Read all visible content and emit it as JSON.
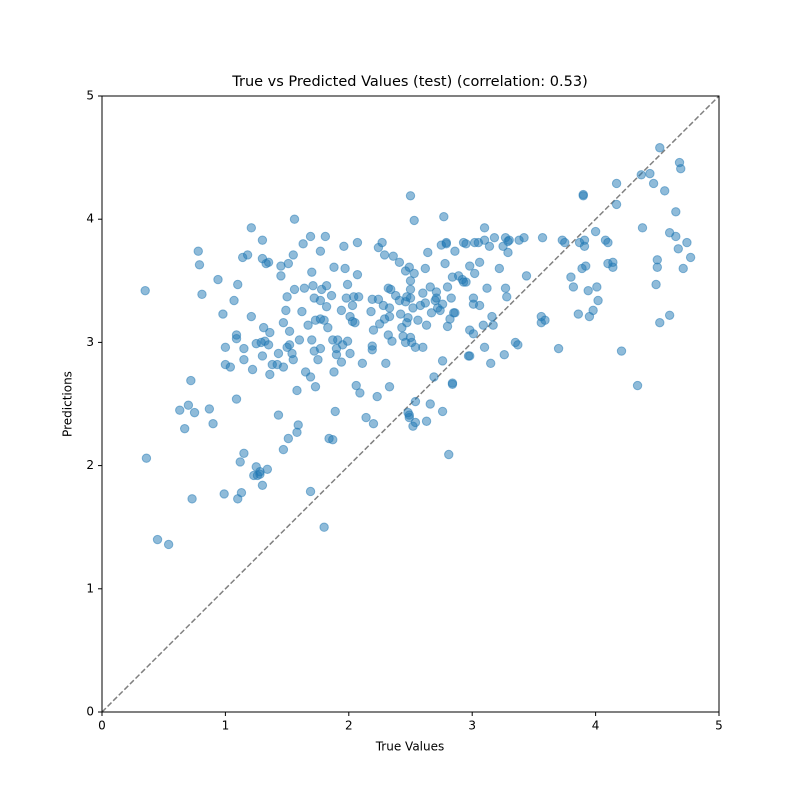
{
  "chart_data": {
    "type": "scatter",
    "title": "True vs Predicted Values (test) (correlation: 0.53)",
    "x_label": "True Values",
    "y_label": "Predictions",
    "color": "#1f77b4",
    "xlim": [
      0,
      5
    ],
    "ylim": [
      0,
      5
    ],
    "xticks": [
      0,
      1,
      2,
      3,
      4,
      5
    ],
    "yticks": [
      0,
      1,
      2,
      3,
      4,
      5
    ],
    "x": [
      0.35,
      0.36,
      0.45,
      0.54,
      0.63,
      0.67,
      0.7,
      0.72,
      0.73,
      0.75,
      0.78,
      0.79,
      0.81,
      0.87,
      0.9,
      0.94,
      0.98,
      0.99,
      1.0,
      1.0,
      1.04,
      1.07,
      1.09,
      1.09,
      1.09,
      1.1,
      1.12,
      1.13,
      1.1,
      1.15,
      1.14,
      1.15,
      1.15,
      1.18,
      1.21,
      1.21,
      1.22,
      1.23,
      1.25,
      1.25,
      1.26,
      1.28,
      1.28,
      1.29,
      1.3,
      1.3,
      1.3,
      1.3,
      1.31,
      1.32,
      1.33,
      1.34,
      1.35,
      1.35,
      1.36,
      1.36,
      1.38,
      1.42,
      1.43,
      1.43,
      1.45,
      1.45,
      1.47,
      1.47,
      1.49,
      1.5,
      1.51,
      1.51,
      1.47,
      1.5,
      1.52,
      1.52,
      1.54,
      1.55,
      1.55,
      1.56,
      1.56,
      1.58,
      1.58,
      1.59,
      1.6,
      1.62,
      1.63,
      1.64,
      1.65,
      1.67,
      1.69,
      1.69,
      1.69,
      1.7,
      1.7,
      1.71,
      1.72,
      1.72,
      1.73,
      1.73,
      1.75,
      1.77,
      1.77,
      1.77,
      1.77,
      1.78,
      1.8,
      1.8,
      1.81,
      1.82,
      1.82,
      1.83,
      1.84,
      1.86,
      1.87,
      1.87,
      1.88,
      1.88,
      1.89,
      1.9,
      1.9,
      1.91,
      1.94,
      1.94,
      1.95,
      1.96,
      1.97,
      1.98,
      1.99,
      1.99,
      2.01,
      2.01,
      2.03,
      2.03,
      2.04,
      2.05,
      2.06,
      2.07,
      2.07,
      2.08,
      2.09,
      2.11,
      2.14,
      2.18,
      2.19,
      2.19,
      2.19,
      2.2,
      2.2,
      2.23,
      2.24,
      2.24,
      2.25,
      2.27,
      2.28,
      2.29,
      2.29,
      2.3,
      2.32,
      2.32,
      2.33,
      2.33,
      2.33,
      2.34,
      2.35,
      2.36,
      2.38,
      2.41,
      2.41,
      2.42,
      2.43,
      2.44,
      2.46,
      2.46,
      2.46,
      2.47,
      2.47,
      2.48,
      2.49,
      2.49,
      2.48,
      2.49,
      2.5,
      2.5,
      2.5,
      2.5,
      2.5,
      2.51,
      2.52,
      2.52,
      2.53,
      2.53,
      2.54,
      2.54,
      2.54,
      2.56,
      2.58,
      2.6,
      2.6,
      2.62,
      2.62,
      2.63,
      2.63,
      2.64,
      2.66,
      2.66,
      2.67,
      2.69,
      2.7,
      2.71,
      2.71,
      2.72,
      2.74,
      2.75,
      2.76,
      2.76,
      2.76,
      2.77,
      2.78,
      2.79,
      2.79,
      2.8,
      2.8,
      2.81,
      2.82,
      2.83,
      2.84,
      2.84,
      2.84,
      2.85,
      2.86,
      2.86,
      2.89,
      2.92,
      2.93,
      2.93,
      2.95,
      2.95,
      2.97,
      2.98,
      2.98,
      2.98,
      3.01,
      3.01,
      3.01,
      3.02,
      3.02,
      3.05,
      3.06,
      3.06,
      3.09,
      3.1,
      3.1,
      3.1,
      3.12,
      3.14,
      3.15,
      3.16,
      3.17,
      3.18,
      3.22,
      3.25,
      3.26,
      3.27,
      3.27,
      3.28,
      3.29,
      3.29,
      3.3,
      3.35,
      3.37,
      3.38,
      3.42,
      3.44,
      3.56,
      3.57,
      3.56,
      3.59,
      3.7,
      3.73,
      3.75,
      3.8,
      3.82,
      3.86,
      3.87,
      3.89,
      3.9,
      3.9,
      3.91,
      3.91,
      3.92,
      3.94,
      3.95,
      3.98,
      4.0,
      4.01,
      4.02,
      4.08,
      4.1,
      4.1,
      4.14,
      4.14,
      4.17,
      4.17,
      4.21,
      4.34,
      4.37,
      4.38,
      4.44,
      4.47,
      4.49,
      4.5,
      4.5,
      4.52,
      4.52,
      4.56,
      4.6,
      4.6,
      4.65,
      4.65,
      4.67,
      4.68,
      4.69,
      4.71,
      4.74,
      4.77
    ],
    "values": [
      3.42,
      2.06,
      1.4,
      1.36,
      2.45,
      2.3,
      2.49,
      2.69,
      1.73,
      2.43,
      3.74,
      3.63,
      3.39,
      2.46,
      2.34,
      3.51,
      3.23,
      1.77,
      2.96,
      2.82,
      2.8,
      3.34,
      3.06,
      3.03,
      2.54,
      3.47,
      2.03,
      1.78,
      1.73,
      2.95,
      3.69,
      2.1,
      2.86,
      3.71,
      3.93,
      3.21,
      2.78,
      1.92,
      1.99,
      2.99,
      1.92,
      1.95,
      1.93,
      3.0,
      3.83,
      3.68,
      2.89,
      1.84,
      3.12,
      3.01,
      3.64,
      1.97,
      3.65,
      2.98,
      3.08,
      2.74,
      2.82,
      2.82,
      2.41,
      2.91,
      3.62,
      3.54,
      2.8,
      3.16,
      3.26,
      3.37,
      3.64,
      2.22,
      2.13,
      2.96,
      2.98,
      3.09,
      2.91,
      2.86,
      3.71,
      3.43,
      4.0,
      2.61,
      2.27,
      2.33,
      3.02,
      3.25,
      3.8,
      3.44,
      2.76,
      3.14,
      3.86,
      1.79,
      2.72,
      3.02,
      3.57,
      3.46,
      3.36,
      2.93,
      3.18,
      2.64,
      2.86,
      3.74,
      3.34,
      3.19,
      2.95,
      3.43,
      1.5,
      3.18,
      3.86,
      3.29,
      3.46,
      3.12,
      2.22,
      3.38,
      2.21,
      3.02,
      3.61,
      2.76,
      2.44,
      2.95,
      2.9,
      3.02,
      3.26,
      2.84,
      2.98,
      3.78,
      3.6,
      3.36,
      3.47,
      3.01,
      3.21,
      2.91,
      3.17,
      3.3,
      3.37,
      3.16,
      2.65,
      3.81,
      3.55,
      3.37,
      2.59,
      2.83,
      2.39,
      3.25,
      3.35,
      2.97,
      2.94,
      3.1,
      2.34,
      2.56,
      3.77,
      3.35,
      3.15,
      3.81,
      3.3,
      3.19,
      3.71,
      2.83,
      3.06,
      3.44,
      2.64,
      3.28,
      3.21,
      3.43,
      3.01,
      3.7,
      3.38,
      3.34,
      3.65,
      3.23,
      3.12,
      3.05,
      3.0,
      3.58,
      3.33,
      3.37,
      3.16,
      2.43,
      2.41,
      2.39,
      3.2,
      3.61,
      3.36,
      3.5,
      3.04,
      3.43,
      4.19,
      3.0,
      3.28,
      2.32,
      3.99,
      3.56,
      2.52,
      2.35,
      2.96,
      3.18,
      3.3,
      3.4,
      2.96,
      3.32,
      3.6,
      3.14,
      2.36,
      3.73,
      2.5,
      3.45,
      3.24,
      2.72,
      3.34,
      3.41,
      3.36,
      3.28,
      3.26,
      3.79,
      3.31,
      2.44,
      2.85,
      4.02,
      3.64,
      3.81,
      3.8,
      3.13,
      3.45,
      2.09,
      3.19,
      3.36,
      2.67,
      2.66,
      3.53,
      3.24,
      3.24,
      3.74,
      3.54,
      3.51,
      3.81,
      3.49,
      3.8,
      3.49,
      2.89,
      2.89,
      3.62,
      3.1,
      3.07,
      3.31,
      3.36,
      3.56,
      3.81,
      3.81,
      3.65,
      3.3,
      3.14,
      3.83,
      2.96,
      3.93,
      3.44,
      3.78,
      2.83,
      3.21,
      3.14,
      3.85,
      3.6,
      3.78,
      2.9,
      3.85,
      3.44,
      3.37,
      3.73,
      3.82,
      3.83,
      3.0,
      2.98,
      3.83,
      3.85,
      3.54,
      3.21,
      3.85,
      3.16,
      3.18,
      2.95,
      3.83,
      3.81,
      3.53,
      3.45,
      3.23,
      3.81,
      3.6,
      4.2,
      4.19,
      3.78,
      3.83,
      3.62,
      3.42,
      3.21,
      3.26,
      3.9,
      3.45,
      3.34,
      3.83,
      3.81,
      3.64,
      3.61,
      3.65,
      4.12,
      4.29,
      2.93,
      2.65,
      4.36,
      3.93,
      4.37,
      4.29,
      3.47,
      3.67,
      3.61,
      3.16,
      4.58,
      4.23,
      3.89,
      3.22,
      4.06,
      3.86,
      3.76,
      4.46,
      4.41,
      3.6,
      3.81,
      3.69
    ]
  }
}
